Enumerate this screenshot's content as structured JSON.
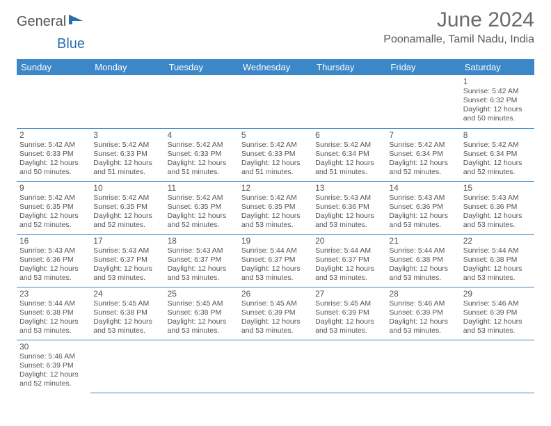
{
  "brand": {
    "part1": "General",
    "part2": "Blue"
  },
  "title": "June 2024",
  "location": "Poonamalle, Tamil Nadu, India",
  "colors": {
    "header_bg": "#3b87c8",
    "header_text": "#ffffff",
    "cell_border": "#3b87c8",
    "text": "#555555",
    "title_text": "#6a6a6a"
  },
  "day_headers": [
    "Sunday",
    "Monday",
    "Tuesday",
    "Wednesday",
    "Thursday",
    "Friday",
    "Saturday"
  ],
  "weeks": [
    [
      null,
      null,
      null,
      null,
      null,
      null,
      {
        "n": "1",
        "sr": "5:42 AM",
        "ss": "6:32 PM",
        "dl": "12 hours and 50 minutes."
      }
    ],
    [
      {
        "n": "2",
        "sr": "5:42 AM",
        "ss": "6:33 PM",
        "dl": "12 hours and 50 minutes."
      },
      {
        "n": "3",
        "sr": "5:42 AM",
        "ss": "6:33 PM",
        "dl": "12 hours and 51 minutes."
      },
      {
        "n": "4",
        "sr": "5:42 AM",
        "ss": "6:33 PM",
        "dl": "12 hours and 51 minutes."
      },
      {
        "n": "5",
        "sr": "5:42 AM",
        "ss": "6:33 PM",
        "dl": "12 hours and 51 minutes."
      },
      {
        "n": "6",
        "sr": "5:42 AM",
        "ss": "6:34 PM",
        "dl": "12 hours and 51 minutes."
      },
      {
        "n": "7",
        "sr": "5:42 AM",
        "ss": "6:34 PM",
        "dl": "12 hours and 52 minutes."
      },
      {
        "n": "8",
        "sr": "5:42 AM",
        "ss": "6:34 PM",
        "dl": "12 hours and 52 minutes."
      }
    ],
    [
      {
        "n": "9",
        "sr": "5:42 AM",
        "ss": "6:35 PM",
        "dl": "12 hours and 52 minutes."
      },
      {
        "n": "10",
        "sr": "5:42 AM",
        "ss": "6:35 PM",
        "dl": "12 hours and 52 minutes."
      },
      {
        "n": "11",
        "sr": "5:42 AM",
        "ss": "6:35 PM",
        "dl": "12 hours and 52 minutes."
      },
      {
        "n": "12",
        "sr": "5:42 AM",
        "ss": "6:35 PM",
        "dl": "12 hours and 53 minutes."
      },
      {
        "n": "13",
        "sr": "5:43 AM",
        "ss": "6:36 PM",
        "dl": "12 hours and 53 minutes."
      },
      {
        "n": "14",
        "sr": "5:43 AM",
        "ss": "6:36 PM",
        "dl": "12 hours and 53 minutes."
      },
      {
        "n": "15",
        "sr": "5:43 AM",
        "ss": "6:36 PM",
        "dl": "12 hours and 53 minutes."
      }
    ],
    [
      {
        "n": "16",
        "sr": "5:43 AM",
        "ss": "6:36 PM",
        "dl": "12 hours and 53 minutes."
      },
      {
        "n": "17",
        "sr": "5:43 AM",
        "ss": "6:37 PM",
        "dl": "12 hours and 53 minutes."
      },
      {
        "n": "18",
        "sr": "5:43 AM",
        "ss": "6:37 PM",
        "dl": "12 hours and 53 minutes."
      },
      {
        "n": "19",
        "sr": "5:44 AM",
        "ss": "6:37 PM",
        "dl": "12 hours and 53 minutes."
      },
      {
        "n": "20",
        "sr": "5:44 AM",
        "ss": "6:37 PM",
        "dl": "12 hours and 53 minutes."
      },
      {
        "n": "21",
        "sr": "5:44 AM",
        "ss": "6:38 PM",
        "dl": "12 hours and 53 minutes."
      },
      {
        "n": "22",
        "sr": "5:44 AM",
        "ss": "6:38 PM",
        "dl": "12 hours and 53 minutes."
      }
    ],
    [
      {
        "n": "23",
        "sr": "5:44 AM",
        "ss": "6:38 PM",
        "dl": "12 hours and 53 minutes."
      },
      {
        "n": "24",
        "sr": "5:45 AM",
        "ss": "6:38 PM",
        "dl": "12 hours and 53 minutes."
      },
      {
        "n": "25",
        "sr": "5:45 AM",
        "ss": "6:38 PM",
        "dl": "12 hours and 53 minutes."
      },
      {
        "n": "26",
        "sr": "5:45 AM",
        "ss": "6:39 PM",
        "dl": "12 hours and 53 minutes."
      },
      {
        "n": "27",
        "sr": "5:45 AM",
        "ss": "6:39 PM",
        "dl": "12 hours and 53 minutes."
      },
      {
        "n": "28",
        "sr": "5:46 AM",
        "ss": "6:39 PM",
        "dl": "12 hours and 53 minutes."
      },
      {
        "n": "29",
        "sr": "5:46 AM",
        "ss": "6:39 PM",
        "dl": "12 hours and 53 minutes."
      }
    ],
    [
      {
        "n": "30",
        "sr": "5:46 AM",
        "ss": "6:39 PM",
        "dl": "12 hours and 52 minutes."
      },
      null,
      null,
      null,
      null,
      null,
      null
    ]
  ],
  "labels": {
    "sunrise": "Sunrise: ",
    "sunset": "Sunset: ",
    "daylight": "Daylight: "
  }
}
